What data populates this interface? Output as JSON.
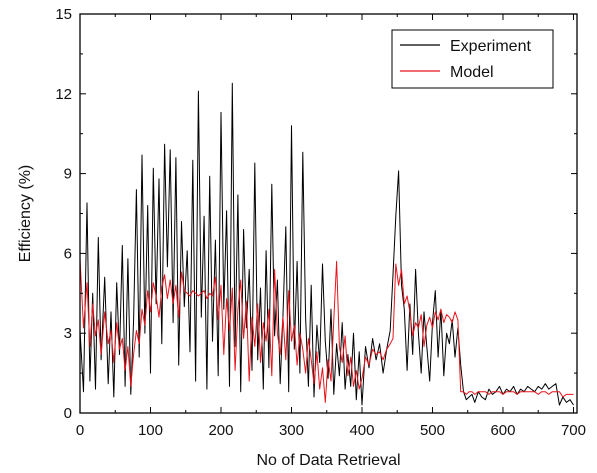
{
  "chart_data": {
    "type": "line",
    "title": "",
    "xlabel": "No of Data Retrieval",
    "ylabel": "Efficiency (%)",
    "xlim": [
      0,
      705
    ],
    "ylim": [
      0,
      15
    ],
    "x_ticks": [
      "0",
      "100",
      "200",
      "300",
      "400",
      "500",
      "600",
      "700"
    ],
    "y_ticks": [
      "0",
      "3",
      "6",
      "9",
      "12",
      "15"
    ],
    "grid": false,
    "legend_position": "top-right",
    "series": [
      {
        "name": "Experiment",
        "color": "#000000",
        "x": [
          0,
          5,
          10,
          14,
          18,
          22,
          26,
          30,
          35,
          40,
          44,
          48,
          52,
          56,
          60,
          64,
          68,
          72,
          76,
          80,
          84,
          88,
          92,
          96,
          100,
          104,
          108,
          112,
          116,
          120,
          124,
          128,
          132,
          136,
          140,
          144,
          148,
          152,
          156,
          160,
          164,
          168,
          172,
          176,
          180,
          184,
          188,
          192,
          196,
          200,
          204,
          208,
          212,
          216,
          220,
          224,
          228,
          232,
          236,
          240,
          244,
          248,
          252,
          256,
          260,
          264,
          268,
          272,
          276,
          280,
          284,
          288,
          292,
          296,
          300,
          304,
          308,
          312,
          316,
          320,
          324,
          328,
          332,
          336,
          340,
          344,
          348,
          352,
          356,
          360,
          364,
          368,
          372,
          376,
          380,
          384,
          388,
          392,
          396,
          400,
          405,
          410,
          415,
          420,
          425,
          430,
          435,
          440,
          444,
          448,
          452,
          456,
          460,
          464,
          468,
          472,
          476,
          480,
          484,
          488,
          492,
          496,
          500,
          504,
          508,
          512,
          516,
          520,
          524,
          528,
          532,
          536,
          540,
          544,
          548,
          552,
          556,
          560,
          565,
          570,
          575,
          580,
          585,
          590,
          595,
          600,
          605,
          610,
          615,
          620,
          625,
          630,
          635,
          640,
          645,
          650,
          655,
          660,
          665,
          670,
          675,
          680,
          685,
          690,
          695,
          700
        ],
        "y": [
          3.1,
          0.8,
          7.9,
          1.2,
          4.5,
          0.9,
          6.6,
          2.0,
          5.1,
          1.1,
          3.8,
          0.6,
          4.9,
          2.2,
          6.3,
          1.0,
          5.8,
          0.7,
          3.5,
          8.4,
          2.1,
          9.7,
          3.0,
          7.8,
          1.5,
          9.2,
          4.1,
          8.8,
          2.6,
          10.1,
          5.5,
          9.9,
          3.4,
          9.6,
          1.8,
          7.2,
          4.0,
          6.1,
          2.3,
          9.5,
          1.2,
          12.1,
          3.6,
          7.4,
          0.9,
          8.9,
          2.7,
          6.5,
          1.4,
          11.3,
          3.9,
          7.6,
          1.0,
          12.4,
          2.5,
          8.2,
          0.8,
          6.9,
          3.2,
          5.4,
          1.6,
          9.4,
          2.0,
          4.7,
          0.9,
          6.1,
          1.7,
          8.6,
          2.9,
          5.0,
          1.1,
          3.7,
          7.0,
          0.8,
          10.8,
          2.4,
          5.7,
          1.5,
          9.8,
          3.6,
          1.0,
          4.8,
          0.6,
          3.3,
          1.9,
          5.6,
          2.7,
          1.3,
          3.9,
          0.7,
          2.6,
          1.4,
          3.4,
          0.9,
          2.2,
          1.0,
          3.0,
          0.5,
          2.3,
          0.3,
          2.5,
          1.7,
          2.8,
          2.0,
          2.6,
          1.5,
          2.4,
          3.1,
          5.2,
          7.4,
          9.1,
          4.8,
          3.9,
          1.6,
          4.1,
          2.2,
          5.4,
          3.0,
          1.5,
          3.8,
          2.5,
          1.2,
          3.4,
          4.6,
          2.1,
          3.9,
          1.4,
          3.0,
          2.6,
          3.5,
          2.1,
          3.2,
          1.8,
          0.8,
          0.5,
          0.6,
          0.7,
          0.4,
          0.8,
          0.6,
          0.5,
          0.9,
          0.7,
          0.8,
          1.0,
          0.7,
          0.9,
          0.8,
          1.0,
          0.7,
          0.9,
          0.8,
          1.0,
          0.9,
          0.8,
          1.0,
          0.9,
          1.1,
          0.9,
          1.0,
          1.1,
          0.3,
          0.6,
          0.4,
          0.5,
          0.3
        ]
      },
      {
        "name": "Model",
        "color": "#e8141c",
        "x": [
          0,
          5,
          10,
          14,
          18,
          22,
          26,
          30,
          35,
          40,
          44,
          48,
          52,
          56,
          60,
          64,
          68,
          72,
          76,
          80,
          84,
          88,
          92,
          96,
          100,
          104,
          108,
          112,
          116,
          120,
          124,
          128,
          132,
          136,
          140,
          144,
          148,
          152,
          156,
          160,
          164,
          168,
          172,
          176,
          180,
          184,
          188,
          192,
          196,
          200,
          204,
          208,
          212,
          216,
          220,
          224,
          228,
          232,
          236,
          240,
          244,
          248,
          252,
          256,
          260,
          264,
          268,
          272,
          276,
          280,
          284,
          288,
          292,
          296,
          300,
          304,
          308,
          312,
          316,
          320,
          324,
          328,
          332,
          336,
          340,
          344,
          348,
          352,
          356,
          360,
          364,
          368,
          372,
          376,
          380,
          384,
          388,
          392,
          396,
          400,
          405,
          410,
          415,
          420,
          425,
          430,
          435,
          440,
          444,
          448,
          452,
          456,
          460,
          464,
          468,
          472,
          476,
          480,
          484,
          488,
          492,
          496,
          500,
          504,
          508,
          512,
          516,
          520,
          524,
          528,
          532,
          536,
          540,
          544,
          548,
          552,
          556,
          560,
          565,
          570,
          575,
          580,
          585,
          590,
          595,
          600,
          605,
          610,
          615,
          620,
          625,
          630,
          635,
          640,
          645,
          650,
          655,
          660,
          665,
          670,
          675,
          680,
          685,
          690,
          695,
          700
        ],
        "y": [
          5.8,
          3.2,
          4.9,
          2.5,
          4.1,
          2.9,
          3.5,
          2.2,
          3.8,
          2.6,
          3.1,
          1.9,
          3.4,
          2.4,
          2.8,
          1.6,
          2.5,
          1.0,
          2.2,
          3.1,
          2.6,
          3.9,
          3.3,
          4.6,
          3.8,
          4.9,
          4.4,
          3.6,
          4.7,
          5.2,
          4.3,
          5.0,
          4.1,
          4.8,
          3.6,
          5.3,
          4.6,
          4.5,
          4.4,
          4.6,
          4.5,
          4.4,
          4.5,
          4.6,
          4.3,
          4.5,
          4.4,
          5.1,
          3.5,
          4.8,
          2.2,
          4.3,
          3.1,
          4.7,
          1.6,
          3.9,
          5.0,
          2.8,
          4.2,
          1.2,
          3.6,
          2.5,
          4.1,
          1.9,
          3.4,
          2.7,
          3.9,
          1.4,
          5.4,
          3.0,
          2.2,
          3.6,
          2.0,
          4.6,
          2.7,
          3.3,
          1.8,
          3.0,
          2.4,
          1.5,
          2.8,
          2.0,
          1.1,
          2.3,
          0.9,
          1.7,
          0.4,
          2.0,
          1.2,
          3.5,
          5.7,
          2.5,
          1.9,
          2.9,
          1.4,
          2.1,
          1.0,
          1.6,
          0.9,
          1.3,
          2.1,
          1.8,
          2.4,
          2.2,
          2.3,
          2.0,
          2.4,
          2.6,
          2.8,
          5.6,
          4.8,
          5.4,
          4.1,
          4.4,
          3.8,
          2.9,
          3.4,
          3.2,
          3.7,
          2.5,
          3.3,
          3.6,
          3.2,
          3.8,
          3.5,
          3.9,
          3.4,
          3.7,
          3.6,
          3.4,
          3.8,
          3.5,
          0.8,
          0.8,
          0.7,
          0.8,
          0.8,
          0.7,
          0.8,
          0.8,
          0.8,
          0.7,
          0.8,
          0.8,
          0.8,
          0.7,
          0.8,
          0.8,
          0.8,
          0.7,
          0.8,
          0.8,
          0.8,
          0.8,
          0.8,
          0.7,
          0.8,
          0.8,
          0.7,
          0.8,
          0.8,
          0.8,
          0.6,
          0.7,
          0.7,
          0.7
        ]
      }
    ]
  }
}
